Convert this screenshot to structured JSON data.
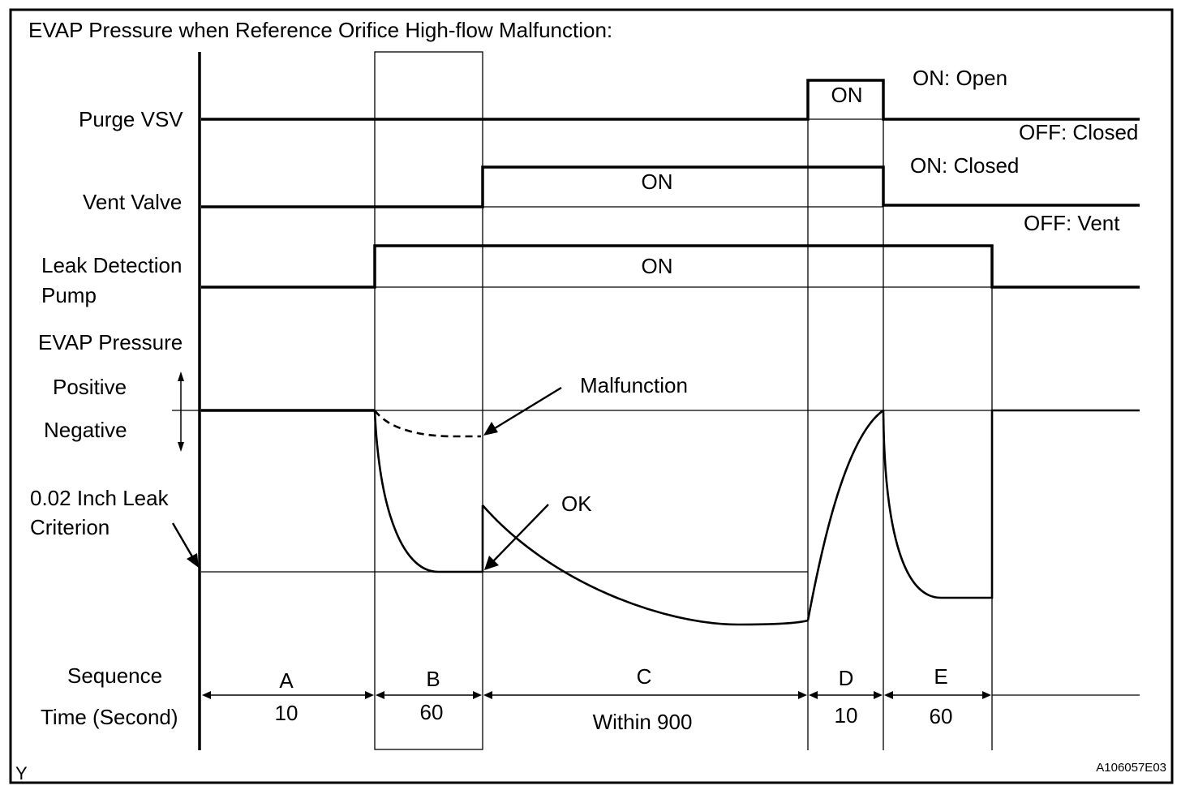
{
  "title": "EVAP Pressure when Reference Orifice High-flow Malfunction:",
  "signals": {
    "purge_vsv": "Purge VSV",
    "vent_valve": "Vent Valve",
    "pump_line1": "Leak Detection",
    "pump_line2": "Pump",
    "evap_pressure": "EVAP Pressure",
    "positive": "Positive",
    "negative": "Negative",
    "criterion_line1": "0.02 Inch Leak",
    "criterion_line2": "Criterion"
  },
  "state_labels": {
    "purge_on": "ON",
    "vent_on": "ON",
    "pump_on": "ON"
  },
  "legends": {
    "purge_on": "ON: Open",
    "purge_off": "OFF: Closed",
    "vent_on": "ON: Closed",
    "vent_off": "OFF: Vent"
  },
  "annotations": {
    "malfunction": "Malfunction",
    "ok": "OK"
  },
  "sequence": {
    "label": "Sequence",
    "time_label": "Time (Second)",
    "phases": [
      {
        "id": "A",
        "time": "10"
      },
      {
        "id": "B",
        "time": "60"
      },
      {
        "id": "C",
        "time": "Within 900"
      },
      {
        "id": "D",
        "time": "10"
      },
      {
        "id": "E",
        "time": "60"
      }
    ]
  },
  "corner_left": "Y",
  "figure_id": "A106057E03"
}
